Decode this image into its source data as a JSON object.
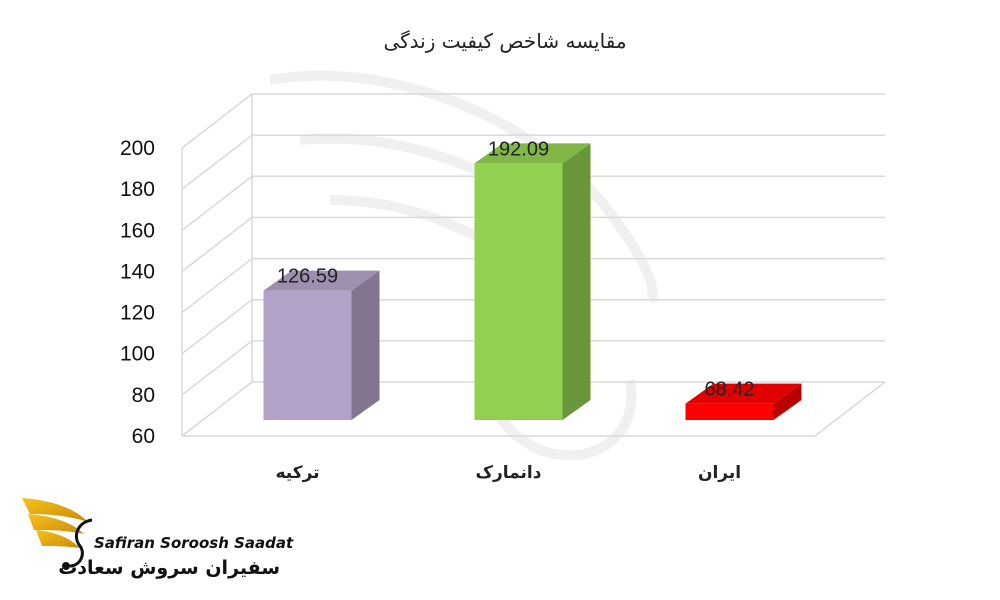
{
  "chart_data": {
    "type": "bar",
    "title": "مقایسه شاخص کیفیت زندگی",
    "categories": [
      "ترکیه",
      "دانمارک",
      "ایران"
    ],
    "values": [
      126.59,
      192.09,
      68.42
    ],
    "value_labels": [
      "126.59",
      "192.09",
      "68.42"
    ],
    "ylim": [
      60,
      200
    ],
    "yticks": [
      60,
      80,
      100,
      120,
      140,
      160,
      180,
      200
    ],
    "grid": true,
    "legend": "none",
    "style": "3d"
  },
  "colors": {
    "bar_1": "#b3a2c7",
    "bar_2": "#92d050",
    "bar_3": "#ff0000",
    "grid": "#d9d9d9"
  },
  "logo": {
    "name_en": "Safiran Soroosh Saadat",
    "name_fa": "سفیران سروش سعادت",
    "icon": "golden-wing-bird-icon"
  }
}
